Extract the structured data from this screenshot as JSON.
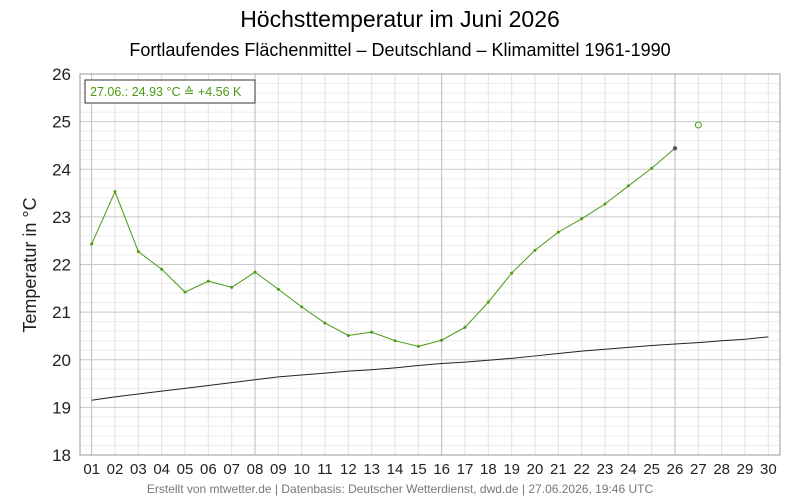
{
  "chart_data": {
    "type": "line",
    "title": "Höchsttemperatur im Juni 2026",
    "subtitle": "Fortlaufendes Flächenmittel – Deutschland – Klimamittel 1961-1990",
    "ylabel": "Temperatur in °C",
    "xlabel": "",
    "ylim": [
      18,
      26
    ],
    "yticks": [
      "18",
      "19",
      "20",
      "21",
      "22",
      "23",
      "24",
      "25",
      "26"
    ],
    "xlim": [
      0.5,
      30.5
    ],
    "categories": [
      "01",
      "02",
      "03",
      "04",
      "05",
      "06",
      "07",
      "08",
      "09",
      "10",
      "11",
      "12",
      "13",
      "14",
      "15",
      "16",
      "17",
      "18",
      "19",
      "20",
      "21",
      "22",
      "23",
      "24",
      "25",
      "26",
      "27",
      "28",
      "29",
      "30"
    ],
    "grid": true,
    "legend": "none",
    "series": [
      {
        "color": "#4a9a12",
        "x": [
          1,
          2,
          3,
          4,
          5,
          6,
          7,
          8,
          9,
          10,
          11,
          12,
          13,
          14,
          15,
          16,
          17,
          18,
          19,
          20,
          21,
          22,
          23,
          24,
          25,
          26
        ],
        "values": [
          22.43,
          23.53,
          22.27,
          21.9,
          21.42,
          21.65,
          21.52,
          21.84,
          21.48,
          21.11,
          20.77,
          20.51,
          20.58,
          20.4,
          20.28,
          20.41,
          20.68,
          21.21,
          21.82,
          22.3,
          22.68,
          22.96,
          23.27,
          23.65,
          24.02,
          24.44
        ]
      },
      {
        "color": "#222222",
        "x": [
          1,
          2,
          3,
          4,
          5,
          6,
          7,
          8,
          9,
          10,
          11,
          12,
          13,
          14,
          15,
          16,
          17,
          18,
          19,
          20,
          21,
          22,
          23,
          24,
          25,
          26,
          27,
          28,
          29,
          30
        ],
        "values": [
          19.15,
          19.22,
          19.28,
          19.34,
          19.4,
          19.46,
          19.52,
          19.58,
          19.64,
          19.68,
          19.72,
          19.76,
          19.79,
          19.83,
          19.88,
          19.92,
          19.95,
          19.99,
          20.03,
          20.08,
          20.13,
          20.18,
          20.22,
          20.26,
          20.3,
          20.33,
          20.36,
          20.4,
          20.43,
          20.48
        ]
      }
    ],
    "forecast_point": {
      "x": 27,
      "y": 24.93,
      "color": "#4a9a12"
    },
    "annotation": "27.06.: 24.93 °C ≙ +4.56 K",
    "footer": "Erstellt von mtwetter.de | Datenbasis: Deutscher Wetterdienst, dwd.de | 27.06.2026, 19:46 UTC"
  }
}
